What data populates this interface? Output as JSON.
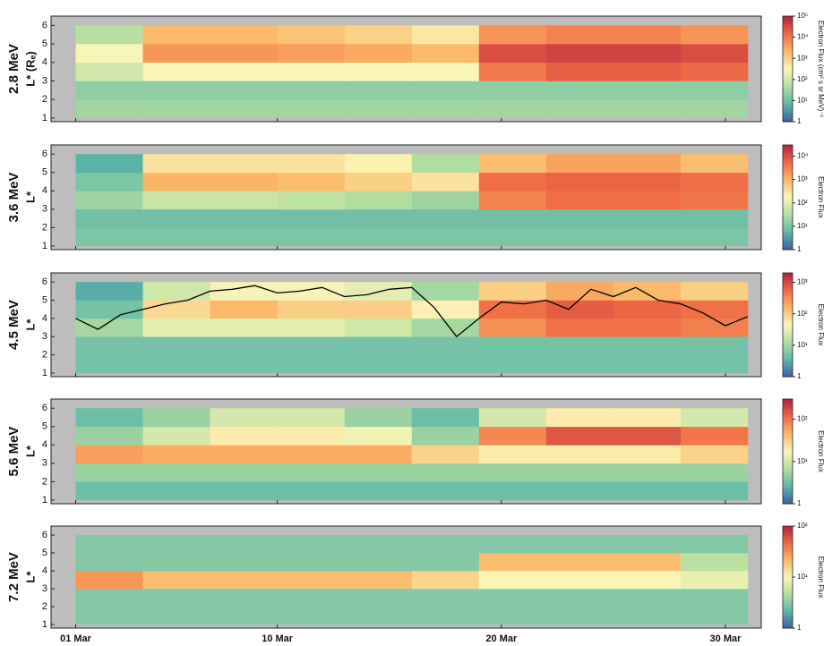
{
  "chart_data": [
    {
      "type": "heatmap",
      "title": "2.8 MeV",
      "ylabel": "L* (Rₑ)",
      "colorbar_label": "Electron Flux (cm² s sr MeV)⁻¹",
      "xlim": [
        -0.1,
        31.6
      ],
      "xticks": [
        1,
        10,
        20,
        30
      ],
      "ylim": [
        0.8,
        6.5
      ],
      "yticks": [
        1,
        2,
        3,
        4,
        5,
        6
      ],
      "clim": [
        1,
        100000
      ],
      "log_color": true,
      "cticks": [
        1,
        {
          "value": 10,
          "label": "10¹"
        },
        {
          "value": 100,
          "label": "10²"
        },
        {
          "value": 1000,
          "label": "10³"
        },
        {
          "value": 10000,
          "label": "10⁴"
        },
        {
          "value": 100000,
          "label": "10⁵"
        }
      ],
      "xbins": [
        1,
        4,
        7,
        10,
        13,
        16,
        19,
        22,
        25,
        28,
        31
      ],
      "ybins": [
        1,
        2,
        3,
        4,
        5,
        6
      ],
      "z": [
        [
          30,
          30,
          30,
          30,
          30,
          30,
          30,
          30,
          30,
          30
        ],
        [
          20,
          20,
          20,
          20,
          20,
          20,
          20,
          20,
          20,
          20
        ],
        [
          100,
          300,
          300,
          300,
          300,
          300,
          10000,
          20000,
          20000,
          15000
        ],
        [
          300,
          5000,
          5000,
          4000,
          3000,
          2000,
          30000,
          40000,
          40000,
          30000
        ],
        [
          50,
          2000,
          2000,
          1500,
          1000,
          500,
          5000,
          8000,
          8000,
          5000
        ]
      ]
    },
    {
      "type": "heatmap",
      "title": "3.6 MeV",
      "ylabel": "L*",
      "colorbar_label": "Electron Flux",
      "xlim": [
        -0.1,
        31.6
      ],
      "xticks": [
        1,
        10,
        20,
        30
      ],
      "ylim": [
        0.8,
        6.5
      ],
      "yticks": [
        1,
        2,
        3,
        4,
        5,
        6
      ],
      "clim": [
        1,
        30000
      ],
      "log_color": true,
      "cticks": [
        1,
        {
          "value": 10,
          "label": "10¹"
        },
        {
          "value": 100,
          "label": "10²"
        },
        {
          "value": 1000,
          "label": "10³"
        },
        {
          "value": 10000,
          "label": "10⁴"
        }
      ],
      "xbins": [
        1,
        4,
        7,
        10,
        13,
        16,
        19,
        22,
        25,
        28,
        31
      ],
      "ybins": [
        1,
        2,
        3,
        4,
        5,
        6
      ],
      "z": [
        [
          10,
          10,
          10,
          10,
          10,
          10,
          10,
          10,
          10,
          10
        ],
        [
          8,
          8,
          8,
          8,
          8,
          8,
          8,
          8,
          8,
          8
        ],
        [
          20,
          50,
          50,
          40,
          30,
          20,
          3000,
          5000,
          5000,
          4000
        ],
        [
          10,
          1000,
          1000,
          800,
          500,
          300,
          5000,
          6000,
          6000,
          5000
        ],
        [
          5,
          300,
          300,
          300,
          200,
          30,
          800,
          1500,
          1500,
          800
        ]
      ]
    },
    {
      "type": "heatmap",
      "title": "4.5 MeV",
      "ylabel": "L*",
      "colorbar_label": "Electron Flux",
      "xlim": [
        -0.1,
        31.6
      ],
      "xticks": [
        1,
        10,
        20,
        30
      ],
      "ylim": [
        0.8,
        6.5
      ],
      "yticks": [
        1,
        2,
        3,
        4,
        5,
        6
      ],
      "clim": [
        1,
        2000
      ],
      "log_color": true,
      "cticks": [
        1,
        {
          "value": 10,
          "label": "10¹"
        },
        {
          "value": 100,
          "label": "10²"
        },
        {
          "value": 1000,
          "label": "10³"
        }
      ],
      "xbins": [
        1,
        4,
        7,
        10,
        13,
        16,
        19,
        22,
        25,
        28,
        31
      ],
      "ybins": [
        1,
        2,
        3,
        4,
        5,
        6
      ],
      "z": [
        [
          5,
          5,
          5,
          5,
          5,
          5,
          5,
          5,
          5,
          5
        ],
        [
          5,
          5,
          5,
          5,
          5,
          5,
          5,
          5,
          5,
          5
        ],
        [
          10,
          30,
          30,
          30,
          20,
          10,
          300,
          500,
          500,
          400
        ],
        [
          5,
          80,
          150,
          100,
          100,
          50,
          500,
          700,
          600,
          500
        ],
        [
          3,
          20,
          40,
          40,
          30,
          10,
          100,
          200,
          150,
          100
        ]
      ],
      "overlay": {
        "color": "#000000",
        "x": [
          1,
          2,
          3,
          4,
          5,
          6,
          7,
          8,
          9,
          10,
          11,
          12,
          13,
          14,
          15,
          16,
          17,
          18,
          19,
          20,
          21,
          22,
          23,
          24,
          25,
          26,
          27,
          28,
          29,
          30,
          31
        ],
        "values": [
          4.0,
          3.4,
          4.2,
          4.5,
          4.8,
          5.0,
          5.5,
          5.6,
          5.8,
          5.4,
          5.5,
          5.7,
          5.2,
          5.3,
          5.6,
          5.7,
          4.6,
          3.0,
          4.0,
          4.9,
          4.8,
          5.0,
          4.5,
          5.6,
          5.2,
          5.7,
          5.0,
          4.8,
          4.3,
          3.6,
          4.1
        ]
      }
    },
    {
      "type": "heatmap",
      "title": "5.6 MeV",
      "ylabel": "L*",
      "colorbar_label": "Electron Flux",
      "xlim": [
        -0.1,
        31.6
      ],
      "xticks": [
        1,
        10,
        20,
        30
      ],
      "ylim": [
        0.8,
        6.5
      ],
      "yticks": [
        1,
        2,
        3,
        4,
        5,
        6
      ],
      "clim": [
        1,
        300
      ],
      "log_color": true,
      "cticks": [
        1,
        {
          "value": 10,
          "label": "10¹"
        },
        {
          "value": 100,
          "label": "10²"
        }
      ],
      "xbins": [
        1,
        4,
        7,
        10,
        13,
        16,
        19,
        22,
        25,
        28,
        31
      ],
      "ybins": [
        1,
        2,
        3,
        4,
        5,
        6
      ],
      "z": [
        [
          3,
          3,
          3,
          3,
          3,
          3,
          3,
          3,
          3,
          3
        ],
        [
          5,
          5,
          5,
          5,
          5,
          5,
          5,
          5,
          5,
          5
        ],
        [
          60,
          50,
          50,
          50,
          50,
          30,
          20,
          20,
          20,
          30
        ],
        [
          5,
          10,
          20,
          20,
          15,
          5,
          80,
          150,
          150,
          100
        ],
        [
          3,
          5,
          10,
          10,
          5,
          3,
          10,
          20,
          20,
          10
        ]
      ]
    },
    {
      "type": "heatmap",
      "title": "7.2 MeV",
      "ylabel": "L*",
      "colorbar_label": "Electron Flux",
      "xlim": [
        -0.1,
        31.6
      ],
      "xticks": [
        {
          "value": 1,
          "label": "01 Mar"
        },
        {
          "value": 10,
          "label": "10 Mar"
        },
        {
          "value": 20,
          "label": "20 Mar"
        },
        {
          "value": 30,
          "label": "30 Mar"
        }
      ],
      "ylim": [
        0.8,
        6.5
      ],
      "yticks": [
        1,
        2,
        3,
        4,
        5,
        6
      ],
      "clim": [
        1,
        100
      ],
      "log_color": true,
      "cticks": [
        1,
        {
          "value": 10,
          "label": "10¹"
        },
        {
          "value": 100,
          "label": "10²"
        }
      ],
      "xbins": [
        1,
        4,
        7,
        10,
        13,
        16,
        19,
        22,
        25,
        28,
        31
      ],
      "ybins": [
        1,
        2,
        3,
        4,
        5,
        6
      ],
      "z": [
        [
          3,
          3,
          3,
          3,
          3,
          3,
          3,
          3,
          3,
          3
        ],
        [
          3,
          3,
          3,
          3,
          3,
          3,
          3,
          3,
          3,
          3
        ],
        [
          30,
          20,
          20,
          20,
          20,
          15,
          10,
          10,
          10,
          8
        ],
        [
          3,
          3,
          3,
          3,
          3,
          3,
          20,
          20,
          20,
          5
        ],
        [
          3,
          3,
          3,
          3,
          3,
          3,
          3,
          3,
          3,
          3
        ]
      ]
    }
  ],
  "colorscale": [
    "#3d5fa8",
    "#5fb8a8",
    "#b5dea0",
    "#fbf6b8",
    "#fbb767",
    "#ef6a45",
    "#b51f3e"
  ],
  "nodata_color": "#bdbdbd"
}
